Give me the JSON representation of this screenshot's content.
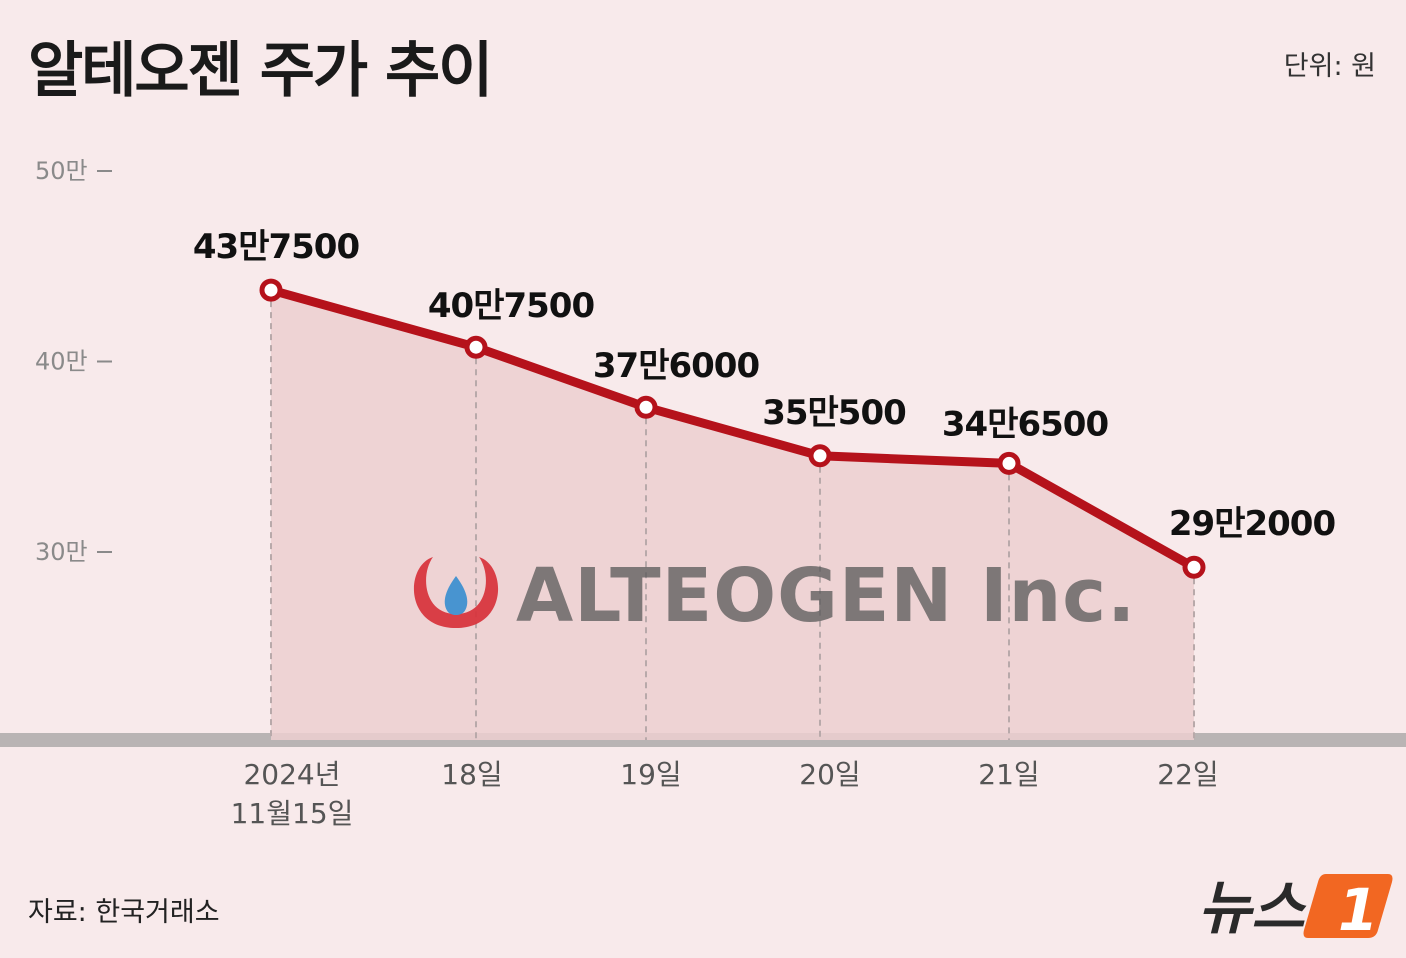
{
  "title": "알테오젠 주가 추이",
  "unit": "단위: 원",
  "source": "자료: 한국거래소",
  "watermark_logo": {
    "company_text": "ALTEOGEN Inc.",
    "icon": "droplet-logo-icon"
  },
  "brand": {
    "text": "뉴스",
    "mark": "1",
    "icon": "news1-logo-icon"
  },
  "colors": {
    "background": "#f8eaeb",
    "line": "#b5121b",
    "area": "#eccfd0",
    "marker_fill": "#ffffff"
  },
  "chart_data": {
    "type": "line",
    "categories": [
      [
        "2024년",
        "11월15일"
      ],
      [
        "18일"
      ],
      [
        "19일"
      ],
      [
        "20일"
      ],
      [
        "21일"
      ],
      [
        "22일"
      ]
    ],
    "values": [
      437500,
      407500,
      376000,
      350500,
      346500,
      292000
    ],
    "data_labels": [
      "43만7500",
      "40만7500",
      "37만6000",
      "35만500",
      "34만6500",
      "29만2000"
    ],
    "y_ticks": [
      {
        "value": 500000,
        "label": "50만"
      },
      {
        "value": 400000,
        "label": "40만"
      },
      {
        "value": 300000,
        "label": "30만"
      }
    ],
    "area_fill": true,
    "grid": false,
    "legend": "none"
  }
}
